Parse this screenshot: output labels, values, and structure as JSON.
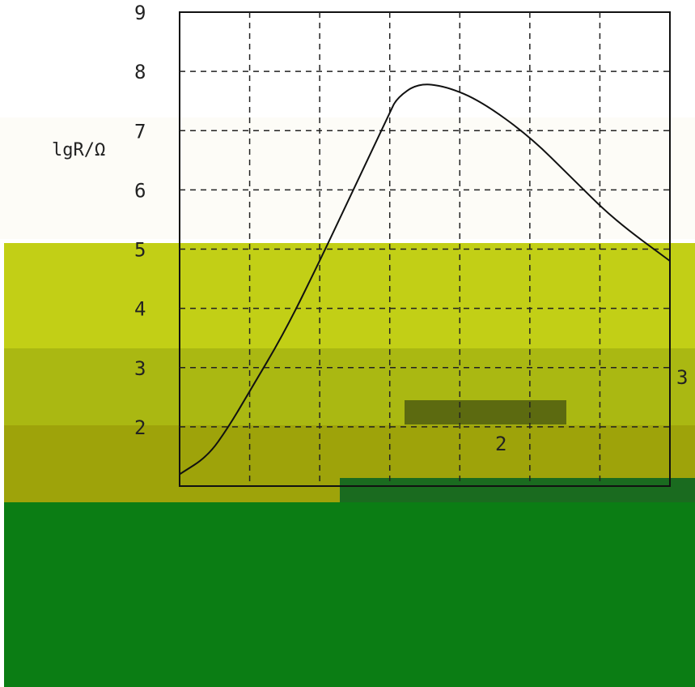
{
  "chart_data": {
    "type": "line",
    "title": "",
    "ylabel": "lgR/Ω",
    "xlabel": "",
    "y_ticks": [
      "9",
      "8",
      "7",
      "6",
      "5",
      "4",
      "3",
      "2"
    ],
    "ylim": [
      1,
      9
    ],
    "xlim": [
      0,
      7
    ],
    "grid": true,
    "series": [
      {
        "x": [
          0,
          0.4,
          0.7,
          1.0,
          1.5,
          2.0,
          2.4,
          2.8,
          3.0,
          3.1,
          3.4,
          3.8,
          4.3,
          5.0,
          5.6,
          6.2,
          7.0
        ],
        "y": [
          1.2,
          1.5,
          2.0,
          2.6,
          3.6,
          4.8,
          5.8,
          6.8,
          7.3,
          7.55,
          7.8,
          7.75,
          7.5,
          6.9,
          6.2,
          5.5,
          4.8
        ]
      }
    ],
    "annotations": [
      "3",
      "2"
    ]
  },
  "colors": {
    "band_olive": "#c2cf16",
    "band_olive_dark": "#aab812",
    "band_khaki": "#9ea30a",
    "band_green": "#0b7d14",
    "axis": "#111111",
    "paper": "#fdfcf7"
  }
}
